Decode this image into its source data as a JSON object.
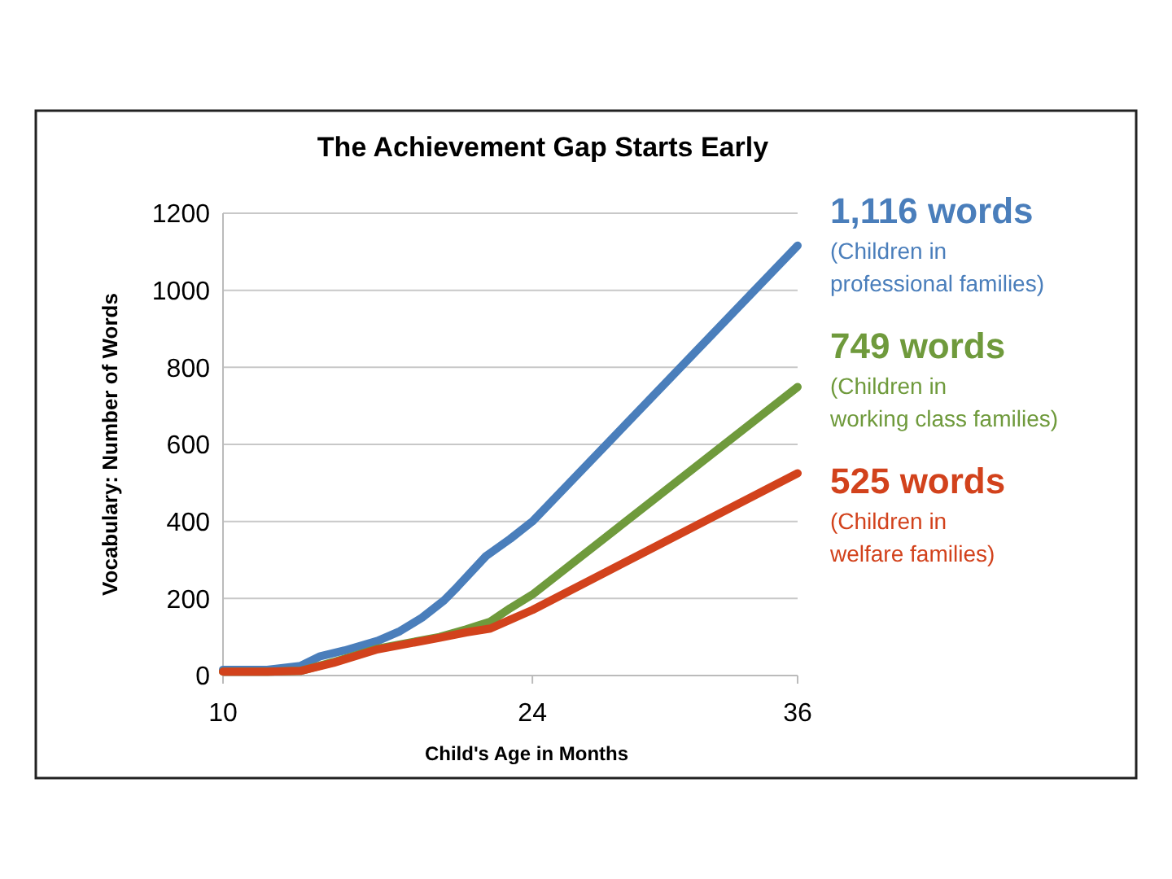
{
  "chart_data": {
    "type": "line",
    "title": "The Achievement Gap Starts Early",
    "xlabel": "Child's Age in Months",
    "ylabel": "Vocabulary: Number of Words",
    "xlim": [
      10,
      36
    ],
    "xticks": [
      10,
      24,
      36
    ],
    "ylim": [
      0,
      1200
    ],
    "yticks": [
      0,
      200,
      400,
      600,
      800,
      1000,
      1200
    ],
    "grid": "y",
    "legend": "right",
    "marker": "none",
    "line_style": "solid",
    "series": [
      {
        "name": "(Children in professional families)",
        "color": "#4a7ebb",
        "x": [
          10,
          12,
          13.5,
          14.4,
          15.5,
          17,
          18,
          19,
          20,
          20.6,
          21.9,
          23,
          24,
          36
        ],
        "values": [
          15,
          15,
          25,
          50,
          65,
          90,
          115,
          150,
          195,
          230,
          310,
          355,
          400,
          1116
        ]
      },
      {
        "name": "(Children in working class families)",
        "color": "#6f9a3c",
        "x": [
          10,
          12,
          13.5,
          15,
          17,
          19.8,
          21,
          22.1,
          23,
          24,
          36
        ],
        "values": [
          10,
          10,
          12,
          35,
          70,
          100,
          120,
          140,
          175,
          210,
          749
        ]
      },
      {
        "name": "(Children in welfare families)",
        "color": "#d2421c",
        "x": [
          10,
          12,
          13.5,
          15,
          17,
          19.8,
          21,
          22.1,
          23,
          24,
          36
        ],
        "values": [
          10,
          10,
          12,
          33,
          68,
          98,
          112,
          122,
          145,
          170,
          525
        ]
      }
    ],
    "annotations": [
      "1,116 words",
      "749 words",
      "525 words"
    ]
  }
}
